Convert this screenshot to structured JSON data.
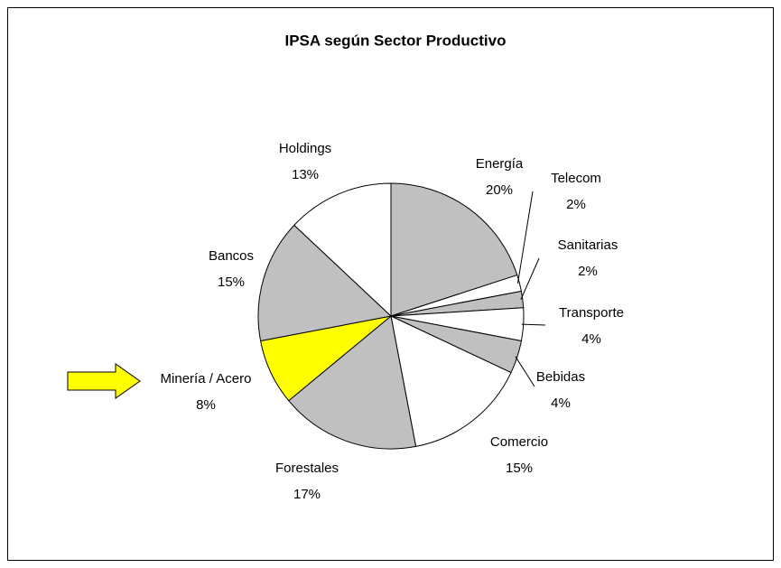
{
  "chart_data": {
    "type": "pie",
    "title": "IPSA según Sector Productivo",
    "categories": [
      "Energía",
      "Telecom",
      "Sanitarias",
      "Transporte",
      "Bebidas",
      "Comercio",
      "Forestales",
      "Minería / Acero",
      "Bancos",
      "Holdings"
    ],
    "values": [
      20,
      2,
      2,
      4,
      4,
      15,
      17,
      8,
      15,
      13
    ],
    "value_labels": [
      "20%",
      "2%",
      "2%",
      "4%",
      "4%",
      "15%",
      "17%",
      "8%",
      "15%",
      "13%"
    ],
    "colors": [
      "#c0c0c0",
      "#ffffff",
      "#c0c0c0",
      "#ffffff",
      "#c0c0c0",
      "#ffffff",
      "#c0c0c0",
      "#ffff00",
      "#c0c0c0",
      "#ffffff"
    ]
  }
}
